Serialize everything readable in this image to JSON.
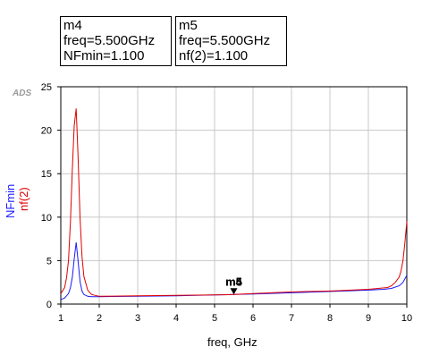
{
  "logo": "ADS",
  "markers": [
    {
      "name": "m4",
      "lines": [
        "m4",
        "freq=5.500GHz",
        "NFmin=1.100"
      ]
    },
    {
      "name": "m5",
      "lines": [
        "m5",
        "freq=5.500GHz",
        "nf(2)=1.100"
      ]
    }
  ],
  "chart_data": {
    "type": "line",
    "xlabel": "freq, GHz",
    "ylabels": [
      "NFmin",
      "nf(2)"
    ],
    "xlim": [
      1,
      10
    ],
    "ylim": [
      0,
      25
    ],
    "xticks": [
      1,
      2,
      3,
      4,
      5,
      6,
      7,
      8,
      9,
      10
    ],
    "yticks": [
      0,
      5,
      10,
      15,
      20,
      25
    ],
    "grid": true,
    "series": [
      {
        "name": "NFmin",
        "color": "#1a1aff",
        "x": [
          1.0,
          1.1,
          1.2,
          1.25,
          1.3,
          1.35,
          1.4,
          1.45,
          1.5,
          1.55,
          1.6,
          1.7,
          1.8,
          2.0,
          3.0,
          4.0,
          5.0,
          5.5,
          6.0,
          7.0,
          8.0,
          9.0,
          9.4,
          9.6,
          9.8,
          9.9,
          10.0
        ],
        "y": [
          0.5,
          0.7,
          1.2,
          1.9,
          3.1,
          5.2,
          7.1,
          5.0,
          2.6,
          1.5,
          1.1,
          0.9,
          0.85,
          0.85,
          0.9,
          0.95,
          1.05,
          1.1,
          1.15,
          1.3,
          1.45,
          1.6,
          1.7,
          1.8,
          2.1,
          2.5,
          3.3
        ]
      },
      {
        "name": "nf(2)",
        "color": "#e00000",
        "x": [
          1.0,
          1.1,
          1.15,
          1.2,
          1.25,
          1.3,
          1.35,
          1.4,
          1.45,
          1.5,
          1.55,
          1.6,
          1.7,
          1.8,
          1.9,
          2.0,
          3.0,
          4.0,
          5.0,
          5.5,
          6.0,
          7.0,
          8.0,
          9.0,
          9.5,
          9.6,
          9.7,
          9.8,
          9.85,
          9.9,
          9.95,
          10.0
        ],
        "y": [
          1.2,
          1.9,
          3.0,
          5.0,
          9.5,
          15.5,
          20.5,
          22.5,
          17.0,
          10.0,
          5.5,
          3.2,
          1.6,
          1.1,
          1.0,
          0.9,
          0.95,
          1.0,
          1.05,
          1.1,
          1.2,
          1.4,
          1.5,
          1.7,
          1.9,
          2.1,
          2.5,
          3.1,
          3.8,
          5.0,
          7.0,
          9.5
        ]
      }
    ],
    "marker_point": {
      "x": 5.5,
      "y": 1.1,
      "labels": [
        "m4",
        "m5"
      ]
    }
  }
}
